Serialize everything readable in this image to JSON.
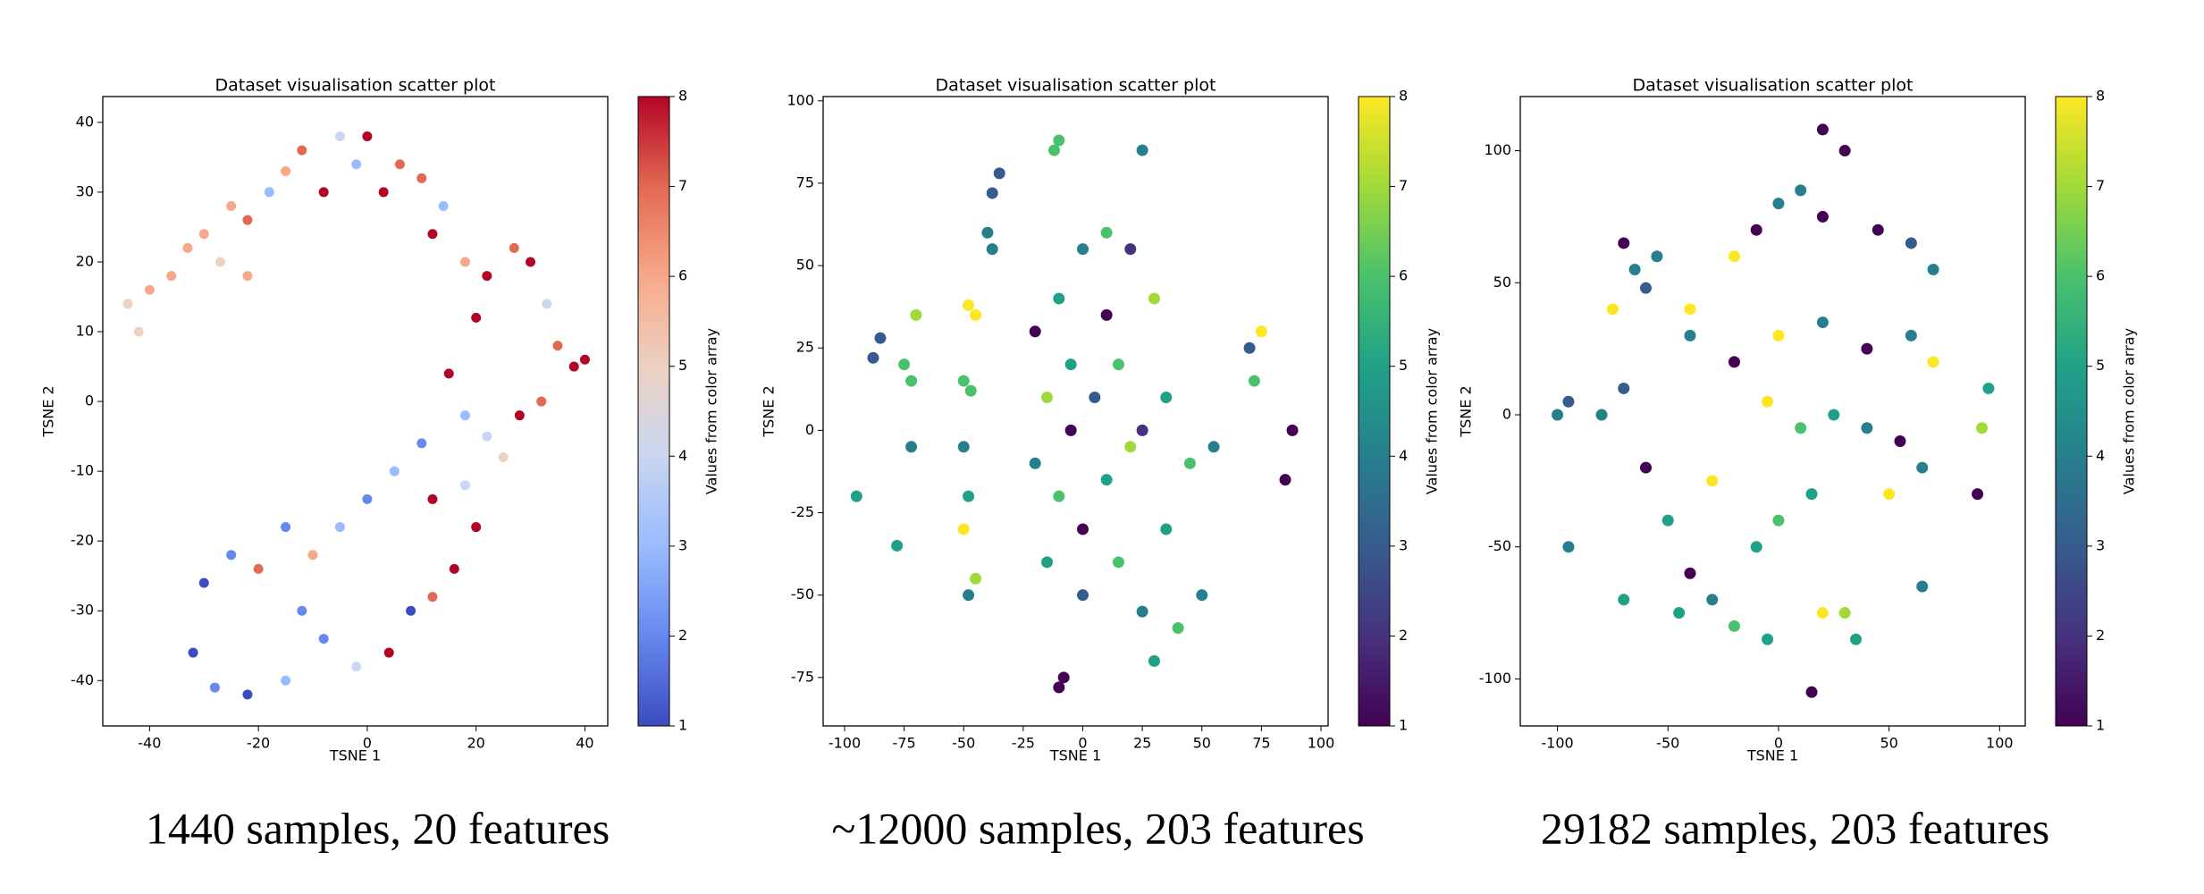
{
  "chart_data": [
    {
      "type": "scatter",
      "title": "Dataset visualisation scatter plot",
      "x_label": "TSNE 1",
      "y_label": "TSNE 2",
      "caption": "1440 samples, 20 features",
      "colorbar_label": "Values from color array",
      "colormap": [
        "#3b4cc0",
        "#6788ee",
        "#9abbff",
        "#c9d7f0",
        "#edd1c2",
        "#f7a889",
        "#e26952",
        "#b40426"
      ],
      "clim": [
        1,
        8
      ],
      "colorbar_ticks": [
        1,
        2,
        3,
        4,
        5,
        6,
        7,
        8
      ],
      "xlim": [
        -48.6,
        44.2
      ],
      "ylim": [
        -46.5,
        43.7
      ],
      "xticks": [
        -40,
        -20,
        0,
        20,
        40
      ],
      "yticks": [
        -40,
        -30,
        -20,
        -10,
        0,
        10,
        20,
        30,
        40
      ],
      "x": [
        -44,
        -42,
        -40,
        -36,
        -33,
        -30,
        -27,
        -25,
        -22,
        -22,
        -18,
        -15,
        -12,
        -8,
        -5,
        -2,
        0,
        3,
        6,
        10,
        14,
        12,
        18,
        22,
        27,
        30,
        33,
        35,
        38,
        40,
        32,
        28,
        22,
        18,
        15,
        20,
        25,
        18,
        12,
        10,
        5,
        0,
        -5,
        -10,
        -15,
        -20,
        -25,
        -30,
        -32,
        -28,
        -22,
        -15,
        -8,
        -2,
        4,
        8,
        12,
        16,
        20,
        -12
      ],
      "values": [
        14,
        10,
        16,
        18,
        22,
        24,
        20,
        28,
        26,
        18,
        30,
        33,
        36,
        30,
        38,
        34,
        38,
        30,
        34,
        32,
        28,
        24,
        20,
        18,
        22,
        20,
        14,
        8,
        5,
        6,
        0,
        -2,
        -5,
        -2,
        4,
        12,
        -8,
        -12,
        -14,
        -6,
        -10,
        -14,
        -18,
        -22,
        -18,
        -24,
        -22,
        -26,
        -36,
        -41,
        -42,
        -40,
        -34,
        -38,
        -36,
        -30,
        -28,
        -24,
        -18,
        -30
      ],
      "color_values": [
        5,
        5,
        6,
        6,
        6,
        6,
        5,
        6,
        7,
        6,
        3,
        6,
        7,
        8,
        4,
        3,
        8,
        8,
        7,
        7,
        3,
        8,
        6,
        8,
        7,
        8,
        4,
        7,
        8,
        8,
        7,
        8,
        4,
        3,
        8,
        8,
        5,
        4,
        8,
        2,
        3,
        2,
        3,
        6,
        2,
        7,
        2,
        1,
        1,
        2,
        1,
        3,
        2,
        4,
        8,
        1,
        7,
        8,
        8,
        2
      ]
    },
    {
      "type": "scatter",
      "title": "Dataset visualisation scatter plot",
      "x_label": "TSNE 1",
      "y_label": "TSNE 2",
      "caption": "~12000 samples, 203 features",
      "colorbar_label": "Values from color array",
      "colormap": [
        "#440154",
        "#46327e",
        "#365c8d",
        "#277f8e",
        "#1fa187",
        "#4ac16d",
        "#a0da39",
        "#fde725"
      ],
      "clim": [
        1,
        8
      ],
      "colorbar_ticks": [
        1,
        2,
        3,
        4,
        5,
        6,
        7,
        8
      ],
      "xlim": [
        -109,
        103
      ],
      "ylim": [
        -89.7,
        101.3
      ],
      "xticks": [
        -100,
        -75,
        -50,
        -25,
        0,
        25,
        50,
        75,
        100
      ],
      "yticks": [
        -75,
        -50,
        -25,
        0,
        25,
        50,
        75,
        100
      ],
      "x": [
        -10,
        -12,
        25,
        -35,
        -38,
        -40,
        -38,
        -70,
        -75,
        -72,
        -85,
        -88,
        -45,
        -48,
        -50,
        -47,
        -72,
        -95,
        -78,
        -50,
        -48,
        -50,
        -45,
        -48,
        -20,
        -10,
        0,
        10,
        20,
        -15,
        -5,
        5,
        15,
        -20,
        -10,
        0,
        10,
        20,
        -15,
        0,
        15,
        25,
        30,
        40,
        50,
        35,
        30,
        35,
        45,
        55,
        70,
        75,
        72,
        88,
        85,
        -10,
        -8,
        25,
        -5,
        10
      ],
      "values": [
        88,
        85,
        85,
        78,
        72,
        60,
        55,
        35,
        20,
        15,
        28,
        22,
        35,
        38,
        15,
        12,
        -5,
        -20,
        -35,
        -5,
        -20,
        -30,
        -45,
        -50,
        30,
        40,
        55,
        60,
        55,
        10,
        0,
        10,
        20,
        -10,
        -20,
        -30,
        -15,
        -5,
        -40,
        -50,
        -40,
        -55,
        -70,
        -60,
        -50,
        -30,
        40,
        10,
        -10,
        -5,
        25,
        30,
        15,
        0,
        -15,
        -78,
        -75,
        0,
        20,
        35
      ],
      "color_values": [
        6,
        6,
        4,
        3,
        3,
        4,
        4,
        7,
        6,
        6,
        3,
        3,
        8,
        8,
        6,
        6,
        4,
        5,
        5,
        4,
        5,
        8,
        7,
        4,
        1,
        5,
        4,
        6,
        2,
        7,
        1,
        3,
        6,
        4,
        6,
        1,
        5,
        7,
        5,
        3,
        6,
        4,
        5,
        6,
        4,
        5,
        7,
        5,
        6,
        4,
        3,
        8,
        6,
        1,
        1,
        1,
        1,
        2,
        5,
        1
      ]
    },
    {
      "type": "scatter",
      "title": "Dataset visualisation scatter plot",
      "x_label": "TSNE 1",
      "y_label": "TSNE 2",
      "caption": "29182 samples, 203 features",
      "colorbar_label": "Values from color array",
      "colormap": [
        "#440154",
        "#46327e",
        "#365c8d",
        "#277f8e",
        "#1fa187",
        "#4ac16d",
        "#a0da39",
        "#fde725"
      ],
      "clim": [
        1,
        8
      ],
      "colorbar_ticks": [
        1,
        2,
        3,
        4,
        5,
        6,
        7,
        8
      ],
      "xlim": [
        -116.8,
        111.6
      ],
      "ylim": [
        -117.8,
        120.5
      ],
      "xticks": [
        -100,
        -50,
        0,
        50,
        100
      ],
      "yticks": [
        -100,
        -50,
        0,
        50,
        100
      ],
      "x": [
        20,
        30,
        -70,
        -65,
        -60,
        -55,
        -40,
        -75,
        -20,
        -10,
        0,
        10,
        20,
        45,
        60,
        70,
        -40,
        -20,
        0,
        20,
        40,
        60,
        70,
        -5,
        10,
        25,
        40,
        55,
        65,
        50,
        -70,
        -80,
        -60,
        -50,
        -40,
        -30,
        -20,
        -10,
        0,
        15,
        -100,
        -95,
        -95,
        -70,
        -45,
        20,
        30,
        15,
        -5,
        35,
        65,
        95,
        92,
        90,
        -30
      ],
      "values": [
        108,
        100,
        65,
        55,
        48,
        60,
        40,
        40,
        60,
        70,
        80,
        85,
        75,
        70,
        65,
        55,
        30,
        20,
        30,
        35,
        25,
        30,
        20,
        5,
        -5,
        0,
        -5,
        -10,
        -20,
        -30,
        10,
        0,
        -20,
        -40,
        -60,
        -70,
        -80,
        -50,
        -40,
        -30,
        0,
        -50,
        5,
        -70,
        -75,
        -75,
        -75,
        -105,
        -85,
        -85,
        -65,
        10,
        -5,
        -30,
        -25
      ],
      "color_values": [
        1,
        1,
        1,
        4,
        3,
        4,
        8,
        8,
        8,
        1,
        4,
        4,
        1,
        1,
        3,
        4,
        4,
        1,
        8,
        4,
        1,
        4,
        8,
        8,
        6,
        5,
        4,
        1,
        4,
        8,
        3,
        4,
        1,
        5,
        1,
        4,
        6,
        5,
        6,
        5,
        4,
        4,
        3,
        5,
        5,
        8,
        7,
        1,
        5,
        5,
        4,
        5,
        7,
        1,
        8
      ]
    }
  ]
}
